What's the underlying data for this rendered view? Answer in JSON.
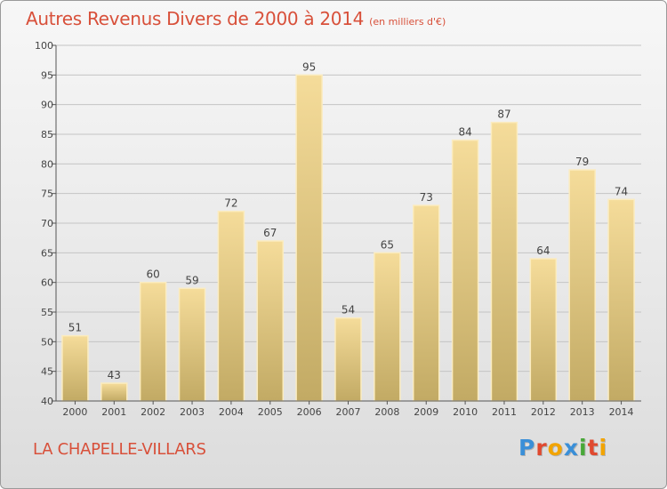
{
  "header": {
    "title": "Autres Revenus Divers de 2000 à 2014",
    "subtitle": "(en milliers d'€)"
  },
  "footer": {
    "commune": "LA CHAPELLE-VILLARS",
    "logo": {
      "letters": [
        "P",
        "r",
        "o",
        "x",
        "i",
        "t",
        "i"
      ],
      "colors": [
        "#3a8fd8",
        "#e0492f",
        "#f2a400",
        "#3a8fd8",
        "#48a838",
        "#e0492f",
        "#f2a400"
      ]
    }
  },
  "colors": {
    "title": "#d8503a",
    "bar_top": "#f5dc9a",
    "bar_bottom": "#c2aa64",
    "bar_stroke": "#fbecc0",
    "grid": "#c4c4c4",
    "label": "#444444"
  },
  "chart_data": {
    "type": "bar",
    "categories": [
      "2000",
      "2001",
      "2002",
      "2003",
      "2004",
      "2005",
      "2006",
      "2007",
      "2008",
      "2009",
      "2010",
      "2011",
      "2012",
      "2013",
      "2014"
    ],
    "values": [
      51,
      43,
      60,
      59,
      72,
      67,
      95,
      54,
      65,
      73,
      84,
      87,
      64,
      79,
      74
    ],
    "value_labels": [
      "51",
      "43",
      "60",
      "59",
      "72",
      "67",
      "95",
      "54",
      "65",
      "73",
      "84",
      "87",
      "64",
      "79",
      "74"
    ],
    "ylim": [
      40,
      100
    ],
    "yticks": [
      40,
      45,
      50,
      55,
      60,
      65,
      70,
      75,
      80,
      85,
      90,
      95,
      100
    ],
    "ytick_labels": [
      "40",
      "45",
      "50",
      "55",
      "60",
      "65",
      "70",
      "75",
      "80",
      "85",
      "90",
      "95",
      "100"
    ],
    "grid": true,
    "xlabel": "",
    "ylabel": ""
  }
}
